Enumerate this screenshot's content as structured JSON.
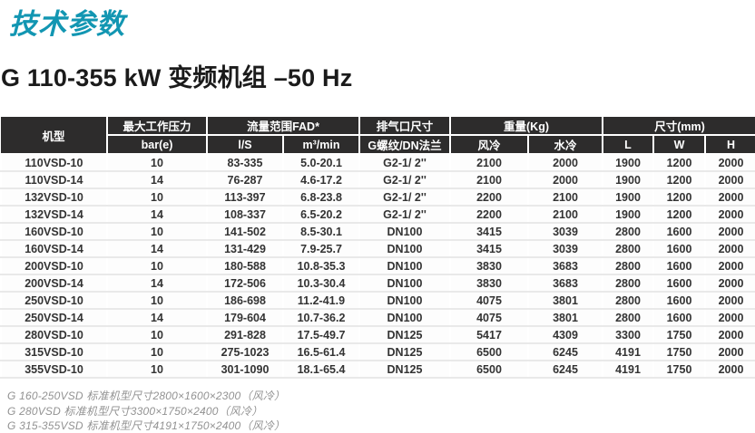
{
  "page": {
    "title": "技术参数",
    "subtitle": "G 110-355 kW 变频机组 –50 Hz",
    "accent_color": "#1296b2",
    "header_bg": "#2d2c2c",
    "cell_blue": "#6fc6de"
  },
  "table": {
    "header_groups": [
      {
        "label": "机型"
      },
      {
        "label": "最大工作压力",
        "sub": [
          "bar(e)"
        ]
      },
      {
        "label": "流量范围FAD*",
        "sub": [
          "l/S",
          "m³/min"
        ]
      },
      {
        "label": "排气口尺寸",
        "sub": [
          "G螺纹/DN法兰"
        ]
      },
      {
        "label": "重量(Kg)",
        "sub": [
          "风冷",
          "水冷"
        ]
      },
      {
        "label": "尺寸(mm)",
        "sub": [
          "L",
          "W",
          "H"
        ]
      }
    ],
    "columns": [
      "机型",
      "bar(e)",
      "l/S",
      "m³/min",
      "G螺纹/DN法兰",
      "风冷",
      "水冷",
      "L",
      "W",
      "H"
    ],
    "rows": [
      [
        "110VSD-10",
        "10",
        "83-335",
        "5.0-20.1",
        "G2-1/ 2''",
        "2100",
        "2000",
        "1900",
        "1200",
        "2000"
      ],
      [
        "110VSD-14",
        "14",
        "76-287",
        "4.6-17.2",
        "G2-1/ 2''",
        "2100",
        "2000",
        "1900",
        "1200",
        "2000"
      ],
      [
        "132VSD-10",
        "10",
        "113-397",
        "6.8-23.8",
        "G2-1/ 2''",
        "2200",
        "2100",
        "1900",
        "1200",
        "2000"
      ],
      [
        "132VSD-14",
        "14",
        "108-337",
        "6.5-20.2",
        "G2-1/ 2''",
        "2200",
        "2100",
        "1900",
        "1200",
        "2000"
      ],
      [
        "160VSD-10",
        "10",
        "141-502",
        "8.5-30.1",
        "DN100",
        "3415",
        "3039",
        "2800",
        "1600",
        "2000"
      ],
      [
        "160VSD-14",
        "14",
        "131-429",
        "7.9-25.7",
        "DN100",
        "3415",
        "3039",
        "2800",
        "1600",
        "2000"
      ],
      [
        "200VSD-10",
        "10",
        "180-588",
        "10.8-35.3",
        "DN100",
        "3830",
        "3683",
        "2800",
        "1600",
        "2000"
      ],
      [
        "200VSD-14",
        "14",
        "172-506",
        "10.3-30.4",
        "DN100",
        "3830",
        "3683",
        "2800",
        "1600",
        "2000"
      ],
      [
        "250VSD-10",
        "10",
        "186-698",
        "11.2-41.9",
        "DN100",
        "4075",
        "3801",
        "2800",
        "1600",
        "2000"
      ],
      [
        "250VSD-14",
        "14",
        "179-604",
        "10.7-36.2",
        "DN100",
        "4075",
        "3801",
        "2800",
        "1600",
        "2000"
      ],
      [
        "280VSD-10",
        "10",
        "291-828",
        "17.5-49.7",
        "DN125",
        "5417",
        "4309",
        "3300",
        "1750",
        "2000"
      ],
      [
        "315VSD-10",
        "10",
        "275-1023",
        "16.5-61.4",
        "DN125",
        "6500",
        "6245",
        "4191",
        "1750",
        "2000"
      ],
      [
        "355VSD-10",
        "10",
        "301-1090",
        "18.1-65.4",
        "DN125",
        "6500",
        "6245",
        "4191",
        "1750",
        "2000"
      ]
    ],
    "footnotes": [
      "G 160-250VSD 标准机型尺寸2800×1600×2300（风冷）",
      "G 280VSD 标准机型尺寸3300×1750×2400（风冷）",
      "G 315-355VSD 标准机型尺寸4191×1750×2400（风冷）"
    ]
  }
}
